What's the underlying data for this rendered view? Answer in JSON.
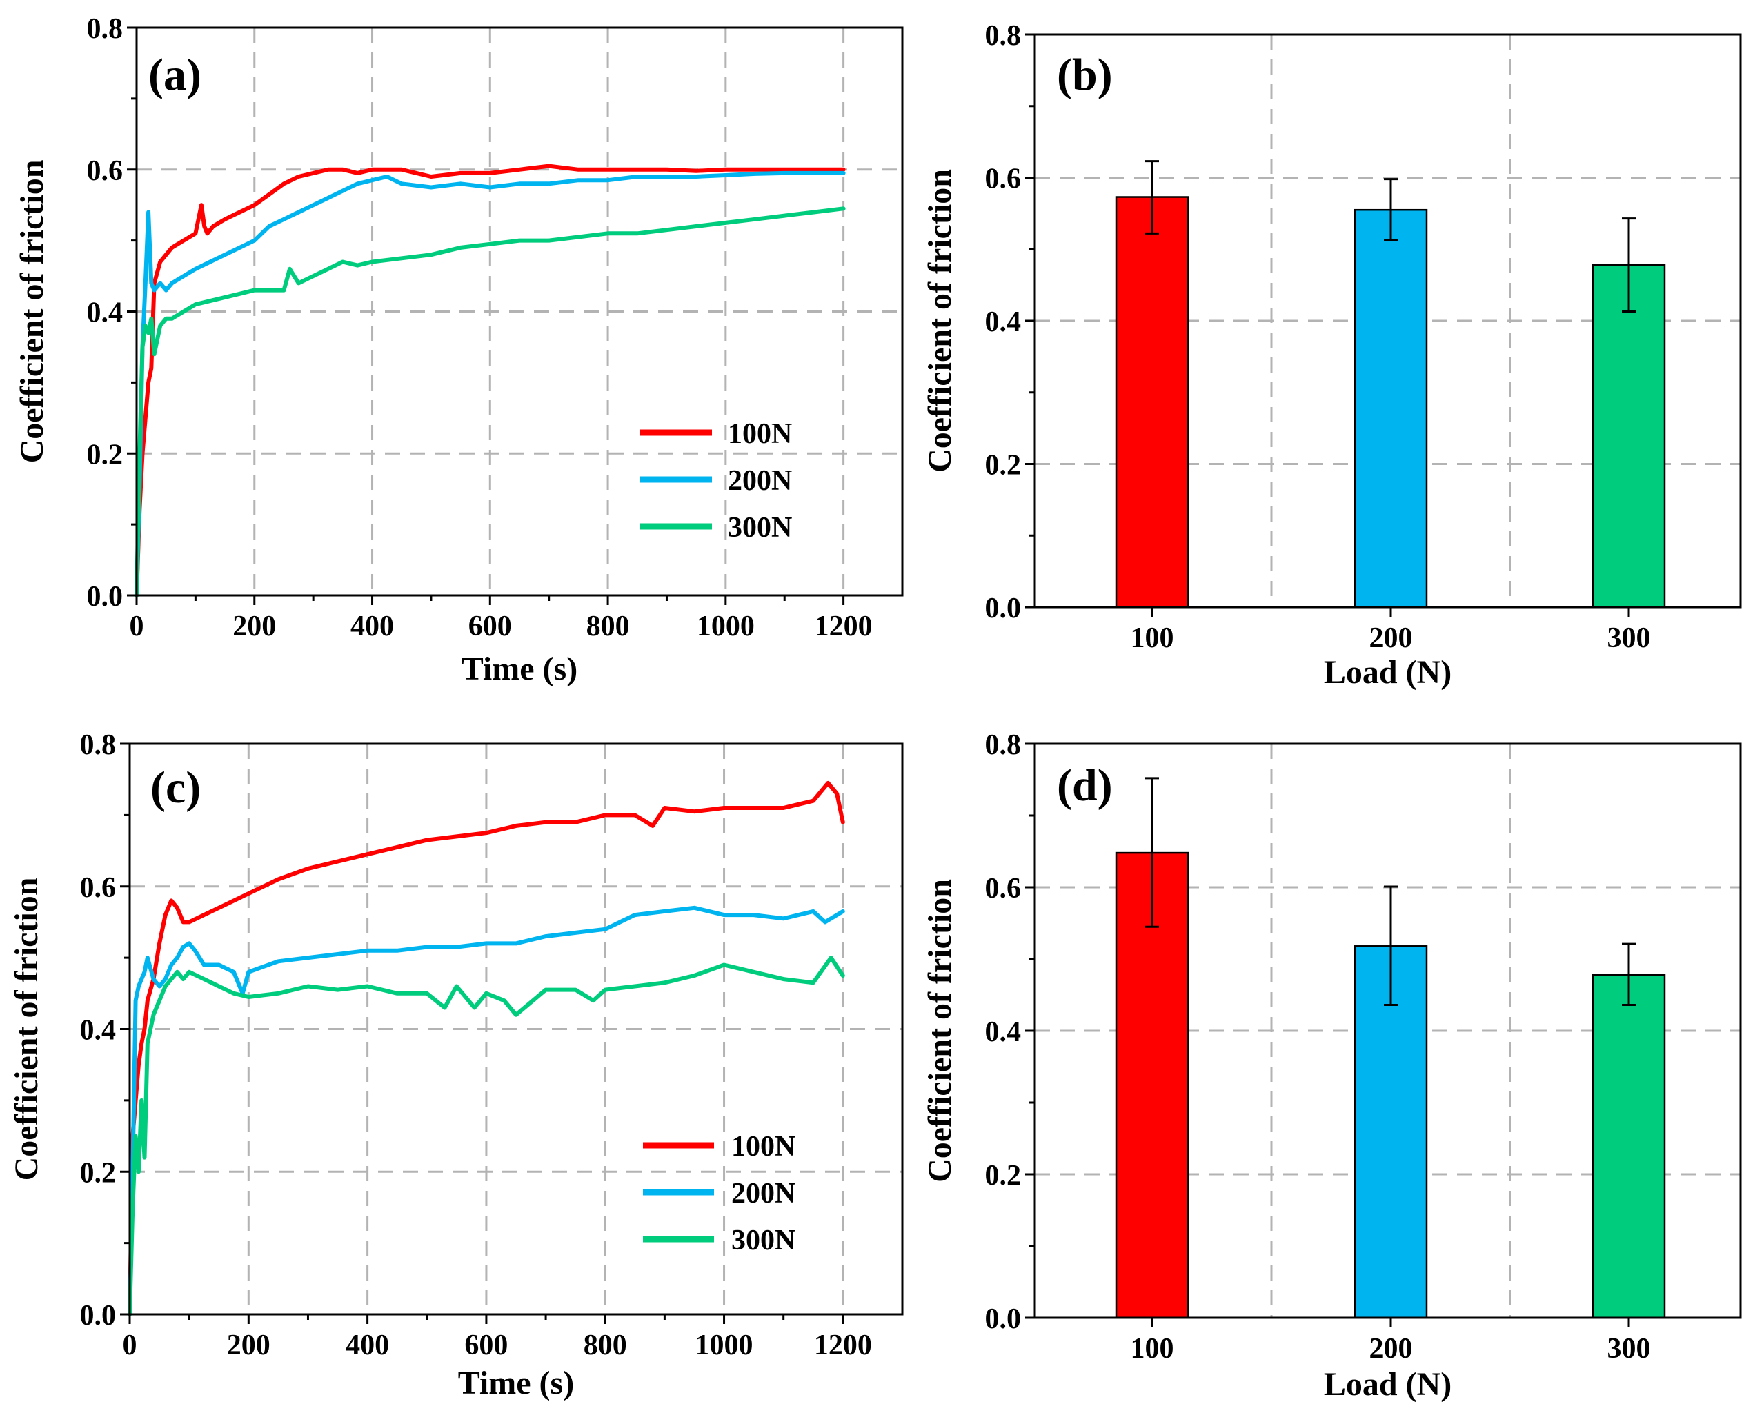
{
  "colors": {
    "100N": "#ff0000",
    "200N": "#00b4f0",
    "300N": "#00cc7e"
  },
  "chart_data": [
    {
      "id": "a",
      "type": "line",
      "panel_label": "(a)",
      "xlabel": "Time (s)",
      "ylabel": "Coefficient of friction",
      "xlim": [
        0,
        1300
      ],
      "ylim": [
        0,
        0.8
      ],
      "xticks": [
        0,
        200,
        400,
        600,
        800,
        1000,
        1200
      ],
      "yticks": [
        0.0,
        0.2,
        0.4,
        0.6,
        0.8
      ],
      "ytick_labels": [
        "0.0",
        "0.2",
        "0.4",
        "0.6",
        "0.8"
      ],
      "grid": true,
      "legend": "lower-right",
      "series": [
        {
          "name": "100N",
          "color": "#ff0000",
          "x": [
            0,
            5,
            10,
            15,
            20,
            25,
            30,
            40,
            50,
            60,
            80,
            100,
            110,
            115,
            120,
            130,
            150,
            175,
            200,
            225,
            250,
            275,
            300,
            325,
            350,
            375,
            400,
            450,
            500,
            550,
            600,
            650,
            700,
            750,
            800,
            850,
            900,
            950,
            1000,
            1050,
            1100,
            1150,
            1200
          ],
          "values": [
            0.0,
            0.12,
            0.2,
            0.25,
            0.3,
            0.32,
            0.44,
            0.47,
            0.48,
            0.49,
            0.5,
            0.51,
            0.55,
            0.52,
            0.51,
            0.52,
            0.53,
            0.54,
            0.55,
            0.565,
            0.58,
            0.59,
            0.595,
            0.6,
            0.6,
            0.595,
            0.6,
            0.6,
            0.59,
            0.595,
            0.595,
            0.6,
            0.605,
            0.6,
            0.6,
            0.6,
            0.6,
            0.598,
            0.6,
            0.6,
            0.6,
            0.6,
            0.6
          ]
        },
        {
          "name": "200N",
          "color": "#00b4f0",
          "x": [
            0,
            5,
            10,
            15,
            20,
            25,
            30,
            40,
            50,
            60,
            80,
            100,
            125,
            150,
            175,
            200,
            225,
            250,
            275,
            300,
            325,
            350,
            375,
            400,
            425,
            450,
            500,
            550,
            600,
            650,
            700,
            750,
            800,
            850,
            900,
            950,
            1000,
            1050,
            1100,
            1150,
            1200
          ],
          "values": [
            0.0,
            0.15,
            0.35,
            0.44,
            0.54,
            0.44,
            0.43,
            0.44,
            0.43,
            0.44,
            0.45,
            0.46,
            0.47,
            0.48,
            0.49,
            0.5,
            0.52,
            0.53,
            0.54,
            0.55,
            0.56,
            0.57,
            0.58,
            0.585,
            0.59,
            0.58,
            0.575,
            0.58,
            0.575,
            0.58,
            0.58,
            0.585,
            0.585,
            0.59,
            0.59,
            0.59,
            0.592,
            0.594,
            0.595,
            0.595,
            0.595
          ]
        },
        {
          "name": "300N",
          "color": "#00cc7e",
          "x": [
            0,
            5,
            10,
            15,
            20,
            25,
            30,
            40,
            50,
            60,
            80,
            100,
            125,
            150,
            175,
            200,
            225,
            250,
            260,
            275,
            300,
            325,
            350,
            375,
            400,
            450,
            500,
            550,
            600,
            650,
            700,
            750,
            800,
            850,
            900,
            950,
            1000,
            1050,
            1100,
            1150,
            1200
          ],
          "values": [
            0.0,
            0.2,
            0.35,
            0.38,
            0.37,
            0.39,
            0.34,
            0.38,
            0.39,
            0.39,
            0.4,
            0.41,
            0.415,
            0.42,
            0.425,
            0.43,
            0.43,
            0.43,
            0.46,
            0.44,
            0.45,
            0.46,
            0.47,
            0.465,
            0.47,
            0.475,
            0.48,
            0.49,
            0.495,
            0.5,
            0.5,
            0.505,
            0.51,
            0.51,
            0.515,
            0.52,
            0.525,
            0.53,
            0.535,
            0.54,
            0.545
          ]
        }
      ]
    },
    {
      "id": "b",
      "type": "bar",
      "panel_label": "(b)",
      "xlabel": "Load (N)",
      "ylabel": "Coefficient of friction",
      "categories": [
        "100",
        "200",
        "300"
      ],
      "values": [
        0.573,
        0.555,
        0.478
      ],
      "errors_upper": [
        0.623,
        0.598,
        0.543
      ],
      "errors_lower": [
        0.522,
        0.513,
        0.413
      ],
      "ylim": [
        0,
        0.8
      ],
      "yticks": [
        0.0,
        0.2,
        0.4,
        0.6,
        0.8
      ],
      "ytick_labels": [
        "0.0",
        "0.2",
        "0.4",
        "0.6",
        "0.8"
      ],
      "grid": true
    },
    {
      "id": "c",
      "type": "line",
      "panel_label": "(c)",
      "xlabel": "Time (s)",
      "ylabel": "Coefficient of friction",
      "xlim": [
        0,
        1300
      ],
      "ylim": [
        0,
        0.8
      ],
      "xticks": [
        0,
        200,
        400,
        600,
        800,
        1000,
        1200
      ],
      "yticks": [
        0.0,
        0.2,
        0.4,
        0.6,
        0.8
      ],
      "ytick_labels": [
        "0.0",
        "0.2",
        "0.4",
        "0.6",
        "0.8"
      ],
      "grid": true,
      "legend": "lower-right",
      "series": [
        {
          "name": "100N",
          "color": "#ff0000",
          "x": [
            0,
            5,
            10,
            15,
            20,
            25,
            30,
            40,
            50,
            60,
            70,
            80,
            90,
            100,
            125,
            150,
            175,
            200,
            250,
            300,
            350,
            400,
            450,
            500,
            550,
            600,
            650,
            700,
            750,
            800,
            850,
            880,
            900,
            950,
            1000,
            1050,
            1100,
            1150,
            1175,
            1190,
            1200
          ],
          "values": [
            0.0,
            0.25,
            0.3,
            0.35,
            0.38,
            0.4,
            0.44,
            0.47,
            0.52,
            0.56,
            0.58,
            0.57,
            0.55,
            0.55,
            0.56,
            0.57,
            0.58,
            0.59,
            0.61,
            0.625,
            0.635,
            0.645,
            0.655,
            0.665,
            0.67,
            0.675,
            0.685,
            0.69,
            0.69,
            0.7,
            0.7,
            0.685,
            0.71,
            0.705,
            0.71,
            0.71,
            0.71,
            0.72,
            0.745,
            0.73,
            0.69
          ]
        },
        {
          "name": "200N",
          "color": "#00b4f0",
          "x": [
            0,
            5,
            10,
            15,
            20,
            25,
            30,
            40,
            50,
            60,
            70,
            80,
            90,
            100,
            110,
            125,
            150,
            175,
            190,
            200,
            250,
            300,
            350,
            400,
            450,
            500,
            550,
            600,
            650,
            700,
            750,
            800,
            850,
            900,
            950,
            1000,
            1050,
            1100,
            1150,
            1170,
            1200
          ],
          "values": [
            0.0,
            0.2,
            0.44,
            0.46,
            0.47,
            0.48,
            0.5,
            0.47,
            0.46,
            0.47,
            0.49,
            0.5,
            0.515,
            0.52,
            0.51,
            0.49,
            0.49,
            0.48,
            0.45,
            0.48,
            0.495,
            0.5,
            0.505,
            0.51,
            0.51,
            0.515,
            0.515,
            0.52,
            0.52,
            0.53,
            0.535,
            0.54,
            0.56,
            0.565,
            0.57,
            0.56,
            0.56,
            0.555,
            0.565,
            0.55,
            0.565
          ]
        },
        {
          "name": "300N",
          "color": "#00cc7e",
          "x": [
            0,
            5,
            10,
            15,
            20,
            25,
            30,
            40,
            50,
            60,
            70,
            80,
            90,
            100,
            125,
            150,
            175,
            200,
            250,
            300,
            350,
            400,
            450,
            500,
            530,
            550,
            580,
            600,
            630,
            650,
            700,
            750,
            780,
            800,
            850,
            900,
            950,
            1000,
            1050,
            1100,
            1150,
            1180,
            1200
          ],
          "values": [
            0.0,
            0.15,
            0.25,
            0.2,
            0.3,
            0.22,
            0.38,
            0.42,
            0.44,
            0.46,
            0.47,
            0.48,
            0.47,
            0.48,
            0.47,
            0.46,
            0.45,
            0.445,
            0.45,
            0.46,
            0.455,
            0.46,
            0.45,
            0.45,
            0.43,
            0.46,
            0.43,
            0.45,
            0.44,
            0.42,
            0.455,
            0.455,
            0.44,
            0.455,
            0.46,
            0.465,
            0.475,
            0.49,
            0.48,
            0.47,
            0.465,
            0.5,
            0.475
          ]
        }
      ]
    },
    {
      "id": "d",
      "type": "bar",
      "panel_label": "(d)",
      "xlabel": "Load (N)",
      "ylabel": "Coefficient of friction",
      "categories": [
        "100",
        "200",
        "300"
      ],
      "values": [
        0.648,
        0.518,
        0.478
      ],
      "errors_upper": [
        0.752,
        0.601,
        0.521
      ],
      "errors_lower": [
        0.545,
        0.436,
        0.436
      ],
      "ylim": [
        0,
        0.8
      ],
      "yticks": [
        0.0,
        0.2,
        0.4,
        0.6,
        0.8
      ],
      "ytick_labels": [
        "0.0",
        "0.2",
        "0.4",
        "0.6",
        "0.8"
      ],
      "grid": true
    }
  ]
}
